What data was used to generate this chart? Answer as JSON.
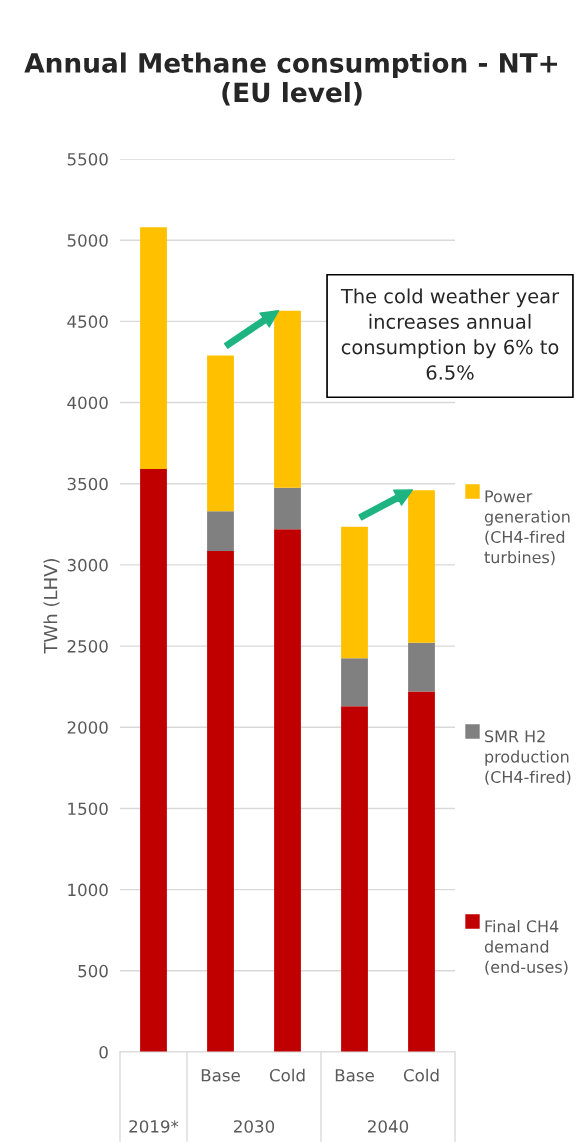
{
  "chart_data": {
    "type": "bar",
    "stacked": true,
    "title": "Annual Methane consumption - NT+ (EU level)",
    "ylabel": "TWh (LHV)",
    "categories": [
      null,
      "Base",
      "Cold",
      "Base",
      "Cold"
    ],
    "series": [
      {
        "name": "Final CH4 demand (end-uses)",
        "color": "#c00000",
        "values": [
          3590,
          3085,
          3220,
          2130,
          2220
        ]
      },
      {
        "name": "SMR H2 production (CH4-fired)",
        "color": "#808080",
        "values": [
          null,
          245,
          255,
          295,
          300
        ]
      },
      {
        "name": "Power generation (CH4-fired turbines)",
        "color": "#ffc000",
        "values": [
          1490,
          960,
          1090,
          810,
          940
        ]
      }
    ],
    "ylim": [
      0,
      5500
    ],
    "yticks": [
      0,
      500,
      1000,
      1500,
      2000,
      2500,
      3000,
      3500,
      4000,
      4500,
      5000,
      5500
    ],
    "grid": "y",
    "legend": "right",
    "annotations": [
      "2019*",
      "2030",
      "2040",
      "The cold weather year increases annual consumption by 6% to 6.5%"
    ]
  }
}
